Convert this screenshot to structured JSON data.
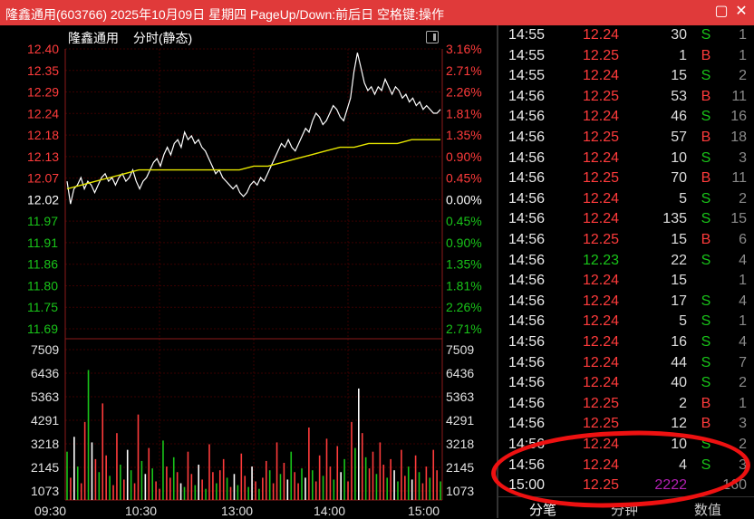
{
  "window": {
    "title": "隆鑫通用(603766) 2025年10月09日 星期四 PageUp/Down:前后日 空格键:操作",
    "restore_icon": "restore-icon",
    "close_icon": "close-icon",
    "accent": "#e03a3a"
  },
  "chart_header": {
    "stock": "隆鑫通用",
    "mode": "分时(静态)"
  },
  "chart_data": {
    "type": "line",
    "price_ticks": [
      "12.40",
      "12.35",
      "12.29",
      "12.24",
      "12.18",
      "12.13",
      "12.07",
      "12.02",
      "11.97",
      "11.91",
      "11.86",
      "11.80",
      "11.75",
      "11.69"
    ],
    "pct_ticks": [
      "3.16%",
      "2.71%",
      "2.26%",
      "1.81%",
      "1.35%",
      "0.90%",
      "0.45%",
      "0.00%",
      "0.45%",
      "0.90%",
      "1.35%",
      "1.81%",
      "2.26%",
      "2.71%"
    ],
    "volume_ticks": [
      "7509",
      "6436",
      "5363",
      "4291",
      "3218",
      "2145",
      "1073"
    ],
    "time_labels": [
      "09:30",
      "10:30",
      "13:00",
      "14:00",
      "15:00"
    ],
    "price_range": [
      11.67,
      12.41
    ],
    "prev_close": 12.02,
    "volume_max": 8582,
    "price_series": [
      12.06,
      12.0,
      12.04,
      12.05,
      12.07,
      12.04,
      12.06,
      12.05,
      12.03,
      12.05,
      12.07,
      12.08,
      12.06,
      12.07,
      12.05,
      12.07,
      12.08,
      12.06,
      12.07,
      12.09,
      12.06,
      12.04,
      12.06,
      12.07,
      12.09,
      12.11,
      12.12,
      12.1,
      12.13,
      12.15,
      12.13,
      12.16,
      12.17,
      12.15,
      12.19,
      12.17,
      12.18,
      12.16,
      12.17,
      12.15,
      12.14,
      12.12,
      12.1,
      12.08,
      12.09,
      12.07,
      12.06,
      12.05,
      12.04,
      12.05,
      12.03,
      12.02,
      12.03,
      12.05,
      12.06,
      12.05,
      12.07,
      12.06,
      12.08,
      12.1,
      12.12,
      12.14,
      12.16,
      12.15,
      12.17,
      12.15,
      12.14,
      12.16,
      12.18,
      12.2,
      12.19,
      12.22,
      12.24,
      12.23,
      12.21,
      12.22,
      12.24,
      12.26,
      12.25,
      12.23,
      12.22,
      12.25,
      12.28,
      12.35,
      12.4,
      12.36,
      12.32,
      12.3,
      12.31,
      12.29,
      12.31,
      12.3,
      12.33,
      12.31,
      12.29,
      12.31,
      12.3,
      12.28,
      12.29,
      12.27,
      12.28,
      12.26,
      12.27,
      12.25,
      12.26,
      12.25,
      12.24,
      12.24,
      12.25
    ],
    "avg_series": [
      12.04,
      12.05,
      12.06,
      12.07,
      12.08,
      12.09,
      12.09,
      12.09,
      12.09,
      12.09,
      12.09,
      12.09,
      12.09,
      12.1,
      12.1,
      12.11,
      12.12,
      12.13,
      12.14,
      12.15,
      12.15,
      12.16,
      12.16,
      12.16,
      12.17,
      12.17,
      12.17
    ],
    "volumes": [
      2600,
      1200,
      3400,
      1800,
      900,
      4200,
      7000,
      3100,
      2200,
      1500,
      5200,
      2400,
      1300,
      800,
      3600,
      1900,
      1100,
      2700,
      1600,
      900,
      4600,
      2100,
      1400,
      2800,
      1700,
      1000,
      600,
      3200,
      1800,
      1200,
      2300,
      1500,
      900,
      700,
      2600,
      1400,
      800,
      1900,
      1100,
      600,
      3000,
      1500,
      900,
      1600,
      2200,
      1200,
      700,
      1400,
      800,
      2500,
      1300,
      700,
      1800,
      1000,
      600,
      1200,
      2100,
      1600,
      900,
      3100,
      1400,
      2000,
      1100,
      2600,
      1500,
      900,
      1700,
      1200,
      3900,
      1600,
      1000,
      2400,
      1300,
      3300,
      1800,
      1100,
      2900,
      1500,
      2200,
      1000,
      4200,
      2800,
      6000,
      3600,
      2300,
      1700,
      2600,
      1400,
      3100,
      1900,
      1200,
      2200,
      1600,
      1000,
      2700,
      1300,
      1800,
      1100,
      2400,
      1500,
      900,
      1800,
      1200,
      2700,
      1600,
      1000
    ],
    "colors": {
      "price_line": "#ffffff",
      "avg_line": "#e6e600",
      "up": "#ff3b3b",
      "down": "#19c419",
      "grid": "#3a0000",
      "axis": "#c8c8c8"
    }
  },
  "ticks": [
    {
      "time": "14:55",
      "price": "12.24",
      "vol": "30",
      "dir": "S",
      "count": "1"
    },
    {
      "time": "14:55",
      "price": "12.25",
      "vol": "1",
      "dir": "B",
      "count": "1"
    },
    {
      "time": "14:55",
      "price": "12.24",
      "vol": "15",
      "dir": "S",
      "count": "2"
    },
    {
      "time": "14:56",
      "price": "12.25",
      "vol": "53",
      "dir": "B",
      "count": "11"
    },
    {
      "time": "14:56",
      "price": "12.24",
      "vol": "46",
      "dir": "S",
      "count": "16"
    },
    {
      "time": "14:56",
      "price": "12.25",
      "vol": "57",
      "dir": "B",
      "count": "18"
    },
    {
      "time": "14:56",
      "price": "12.24",
      "vol": "10",
      "dir": "S",
      "count": "3"
    },
    {
      "time": "14:56",
      "price": "12.25",
      "vol": "70",
      "dir": "B",
      "count": "11"
    },
    {
      "time": "14:56",
      "price": "12.24",
      "vol": "5",
      "dir": "S",
      "count": "2"
    },
    {
      "time": "14:56",
      "price": "12.24",
      "vol": "135",
      "dir": "S",
      "count": "15"
    },
    {
      "time": "14:56",
      "price": "12.25",
      "vol": "15",
      "dir": "B",
      "count": "6"
    },
    {
      "time": "14:56",
      "price": "12.23",
      "vol": "22",
      "dir": "S",
      "count": "4"
    },
    {
      "time": "14:56",
      "price": "12.24",
      "vol": "15",
      "dir": "",
      "count": "1"
    },
    {
      "time": "14:56",
      "price": "12.24",
      "vol": "17",
      "dir": "S",
      "count": "4"
    },
    {
      "time": "14:56",
      "price": "12.24",
      "vol": "5",
      "dir": "S",
      "count": "1"
    },
    {
      "time": "14:56",
      "price": "12.24",
      "vol": "16",
      "dir": "S",
      "count": "4"
    },
    {
      "time": "14:56",
      "price": "12.24",
      "vol": "44",
      "dir": "S",
      "count": "7"
    },
    {
      "time": "14:56",
      "price": "12.24",
      "vol": "40",
      "dir": "S",
      "count": "2"
    },
    {
      "time": "14:56",
      "price": "12.25",
      "vol": "2",
      "dir": "B",
      "count": "1"
    },
    {
      "time": "14:56",
      "price": "12.25",
      "vol": "12",
      "dir": "B",
      "count": "3"
    },
    {
      "time": "14:56",
      "price": "12.24",
      "vol": "10",
      "dir": "S",
      "count": "2"
    },
    {
      "time": "14:56",
      "price": "12.24",
      "vol": "4",
      "dir": "S",
      "count": "3"
    },
    {
      "time": "15:00",
      "price": "12.25",
      "vol": "2222",
      "dir": "",
      "count": "160"
    }
  ],
  "tabs": [
    {
      "label": "分笔",
      "active": true
    },
    {
      "label": "分钟",
      "active": false
    },
    {
      "label": "数值",
      "active": false
    }
  ]
}
